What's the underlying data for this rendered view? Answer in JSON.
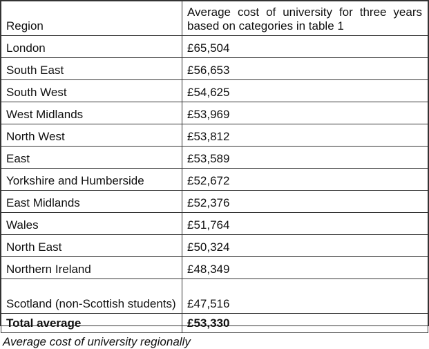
{
  "table": {
    "header": [
      "Region",
      "Average cost of university for three years based on categories in table 1"
    ],
    "rows": [
      [
        "London",
        "£65,504"
      ],
      [
        "South East",
        "£56,653"
      ],
      [
        "South West",
        "£54,625"
      ],
      [
        "West Midlands",
        "£53,969"
      ],
      [
        "North West",
        "£53,812"
      ],
      [
        "East",
        "£53,589"
      ],
      [
        "Yorkshire and Humberside",
        "£52,672"
      ],
      [
        "East Midlands",
        "£52,376"
      ],
      [
        "Wales",
        "£51,764"
      ],
      [
        "North East",
        "£50,324"
      ],
      [
        "Northern Ireland",
        "£48,349"
      ],
      [
        "Scotland (non-Scottish students)",
        "£47,516"
      ]
    ],
    "total": [
      "Total average",
      "£53,330"
    ]
  },
  "caption": "Average cost of university regionally"
}
